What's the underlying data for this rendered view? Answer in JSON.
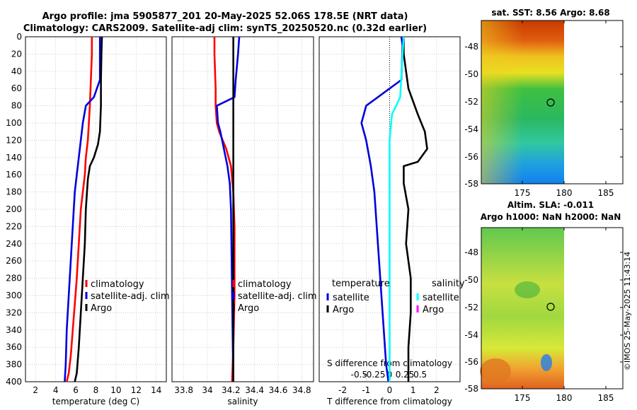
{
  "titles": {
    "line1": "Argo profile: jma 5905877_201 20-May-2025 52.06S 178.5E (NRT data)",
    "line2": "Climatology: CARS2009. Satellite-adj clim: synTS_20250520.nc (0.32d earlier)",
    "sst": "sat. SST: 8.56 Argo: 8.68",
    "sla1": "Altim. SLA: -0.011",
    "sla2": "Argo h1000: NaN h2000: NaN",
    "side": "©IMOS 25-May-2025 11:43:14"
  },
  "colors": {
    "climatology": "#ff0000",
    "satellite": "#0000dd",
    "argo": "#000000",
    "salinity_sat": "#00ffff",
    "salinity_argo": "#ff00ff"
  },
  "chart_data": [
    {
      "type": "line",
      "title": "Temperature profile",
      "xlabel": "temperature (deg C)",
      "xlim": [
        1,
        15
      ],
      "xticks": [
        "2",
        "4",
        "6",
        "8",
        "10",
        "12",
        "14"
      ],
      "ylim": [
        0,
        400
      ],
      "yticks": [
        "0",
        "20",
        "40",
        "60",
        "80",
        "100",
        "120",
        "140",
        "160",
        "180",
        "200",
        "220",
        "240",
        "260",
        "280",
        "300",
        "320",
        "340",
        "360",
        "380",
        "400"
      ],
      "legend": [
        "climatology",
        "satellite-adj. clim",
        "Argo"
      ],
      "series": [
        {
          "name": "climatology",
          "color": "#ff0000",
          "x": [
            7.6,
            7.6,
            7.5,
            7.4,
            7.3,
            7.2,
            7.0,
            6.9,
            6.7,
            6.5,
            6.3,
            6.1,
            5.9,
            5.7,
            5.5,
            5.3,
            5.1
          ],
          "depth": [
            0,
            20,
            50,
            80,
            100,
            120,
            140,
            160,
            180,
            200,
            240,
            280,
            310,
            340,
            370,
            390,
            400
          ]
        },
        {
          "name": "satellite-adj. clim",
          "color": "#0000dd",
          "x": [
            8.4,
            8.4,
            8.4,
            7.8,
            7.0,
            6.7,
            6.5,
            6.2,
            5.9,
            5.7,
            5.5,
            5.3,
            5.1,
            5.0,
            4.9
          ],
          "depth": [
            0,
            20,
            50,
            70,
            80,
            100,
            120,
            150,
            180,
            220,
            260,
            300,
            340,
            380,
            400
          ]
        },
        {
          "name": "Argo",
          "color": "#000000",
          "x": [
            8.6,
            8.55,
            8.5,
            8.5,
            8.4,
            8.2,
            7.8,
            7.4,
            7.2,
            7.0,
            6.9,
            6.7,
            6.5,
            6.3,
            6.1,
            5.9
          ],
          "depth": [
            0,
            20,
            50,
            80,
            110,
            125,
            140,
            150,
            165,
            200,
            240,
            280,
            320,
            360,
            390,
            400
          ]
        }
      ]
    },
    {
      "type": "line",
      "title": "Salinity profile",
      "xlabel": "salinity",
      "xlim": [
        33.7,
        34.9
      ],
      "xticks": [
        "33.8",
        "34",
        "34.2",
        "34.4",
        "34.6",
        "34.8"
      ],
      "ylim": [
        0,
        400
      ],
      "legend": [
        "climatology",
        "satellite-adj. clim",
        "Argo"
      ],
      "series": [
        {
          "name": "climatology",
          "color": "#ff0000",
          "x": [
            34.06,
            34.06,
            34.07,
            34.07,
            34.08,
            34.1,
            34.16,
            34.2,
            34.22,
            34.23,
            34.23,
            34.22,
            34.21
          ],
          "depth": [
            0,
            20,
            60,
            80,
            100,
            110,
            130,
            150,
            180,
            220,
            300,
            360,
            400
          ]
        },
        {
          "name": "satellite-adj. clim",
          "color": "#0000dd",
          "x": [
            34.27,
            34.26,
            34.24,
            34.23,
            34.08,
            34.09,
            34.11,
            34.14,
            34.17,
            34.19,
            34.2,
            34.21,
            34.22
          ],
          "depth": [
            0,
            20,
            50,
            70,
            80,
            100,
            110,
            130,
            150,
            170,
            200,
            300,
            400
          ]
        },
        {
          "name": "Argo",
          "color": "#000000",
          "x": [
            34.22,
            34.22,
            34.22,
            34.22,
            34.22,
            34.22
          ],
          "depth": [
            0,
            100,
            200,
            300,
            380,
            400
          ]
        }
      ]
    },
    {
      "type": "line",
      "title": "Difference from climatology",
      "xlabel": "T difference from climatology",
      "xlabel2": "S difference from climatology",
      "xlim": [
        -3,
        3
      ],
      "xticks": [
        "-2",
        "-1",
        "0",
        "1",
        "2"
      ],
      "x2ticks": [
        "-0.5",
        "-0.25",
        "0",
        "0.25",
        "0.5"
      ],
      "ylim": [
        0,
        400
      ],
      "legend_titles": [
        "temperature",
        "salinity"
      ],
      "legend": [
        "satellite",
        "Argo",
        "satellite",
        "Argo"
      ],
      "series": [
        {
          "name": "T satellite",
          "color": "#0000dd",
          "x": [
            0.5,
            0.55,
            0.5,
            -0.5,
            -1.0,
            -1.2,
            -1.0,
            -0.8,
            -0.65,
            -0.55,
            -0.45,
            -0.35,
            -0.25,
            -0.15,
            -0.05
          ],
          "depth": [
            0,
            10,
            50,
            70,
            80,
            100,
            120,
            150,
            180,
            220,
            260,
            300,
            340,
            380,
            400
          ]
        },
        {
          "name": "T Argo",
          "color": "#000000",
          "x": [
            0.6,
            0.6,
            0.8,
            1.2,
            1.5,
            1.6,
            1.2,
            0.6,
            0.6,
            0.8,
            0.7,
            0.9,
            0.9,
            0.8,
            0.8
          ],
          "depth": [
            0,
            20,
            60,
            90,
            110,
            130,
            145,
            150,
            170,
            200,
            240,
            280,
            320,
            360,
            400
          ]
        },
        {
          "name": "S satellite",
          "color": "#00ffff",
          "x": [
            0.6,
            0.55,
            0.45,
            0.1,
            0.0,
            0.0,
            0.0,
            0.0,
            0.0
          ],
          "depth": [
            0,
            20,
            70,
            90,
            120,
            160,
            240,
            320,
            400
          ]
        }
      ]
    }
  ]
}
